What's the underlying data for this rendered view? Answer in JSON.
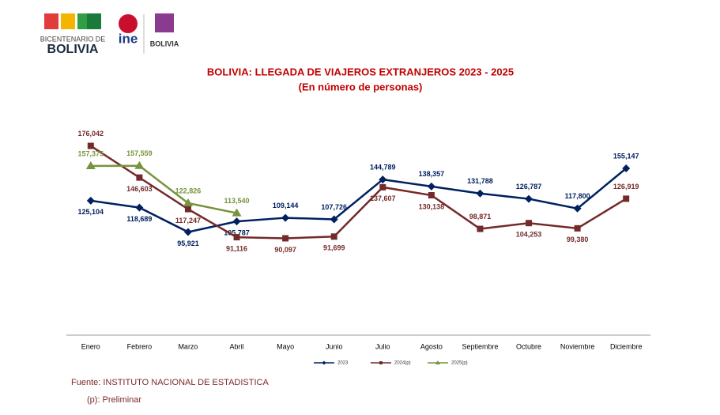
{
  "header": {
    "logo1_line1": "BICENTENARIO DE",
    "logo1_line2": "BOLIVIA",
    "logo2": "ine",
    "logo3": "BOLIVIA"
  },
  "chart_data": {
    "type": "line",
    "title": "BOLIVIA: LLEGADA DE VIAJEROS EXTRANJEROS 2023 - 2025",
    "subtitle": "(En número de personas)",
    "categories": [
      "Enero",
      "Febrero",
      "Marzo",
      "Abril",
      "Mayo",
      "Junio",
      "Julio",
      "Agosto",
      "Septiembre",
      "Octubre",
      "Noviembre",
      "Diciembre"
    ],
    "ylim": [
      0,
      200000
    ],
    "series": [
      {
        "name": "2023",
        "color": "#002060",
        "marker": "diamond",
        "values": [
          125104,
          118689,
          95921,
          105787,
          109144,
          107726,
          144789,
          138357,
          131788,
          126787,
          117800,
          155147
        ],
        "value_labels": [
          "125,104",
          "118,689",
          "95,921",
          "105,787",
          "109,144",
          "107,726",
          "144,789",
          "138,357",
          "131,788",
          "126,787",
          "117,800",
          "155,147"
        ]
      },
      {
        "name": "2024(p)",
        "color": "#742a2a",
        "marker": "square",
        "values": [
          176042,
          146603,
          117247,
          91116,
          90097,
          91699,
          137607,
          130138,
          98871,
          104253,
          99380,
          126919
        ],
        "value_labels": [
          "176,042",
          "146,603",
          "117,247",
          "91,116",
          "90,097",
          "91,699",
          "137,607",
          "130,138",
          "98,871",
          "104,253",
          "99,380",
          "126,919"
        ]
      },
      {
        "name": "2025(p)",
        "color": "#77933c",
        "marker": "triangle",
        "values": [
          157375,
          157559,
          122826,
          113540,
          null,
          null,
          null,
          null,
          null,
          null,
          null,
          null
        ],
        "value_labels": [
          "157,375",
          "157,559",
          "122,826",
          "113,540",
          null,
          null,
          null,
          null,
          null,
          null,
          null,
          null
        ]
      }
    ]
  },
  "footer": {
    "source": "Fuente: INSTITUTO NACIONAL DE ESTADISTICA",
    "note": "(p): Preliminar"
  }
}
